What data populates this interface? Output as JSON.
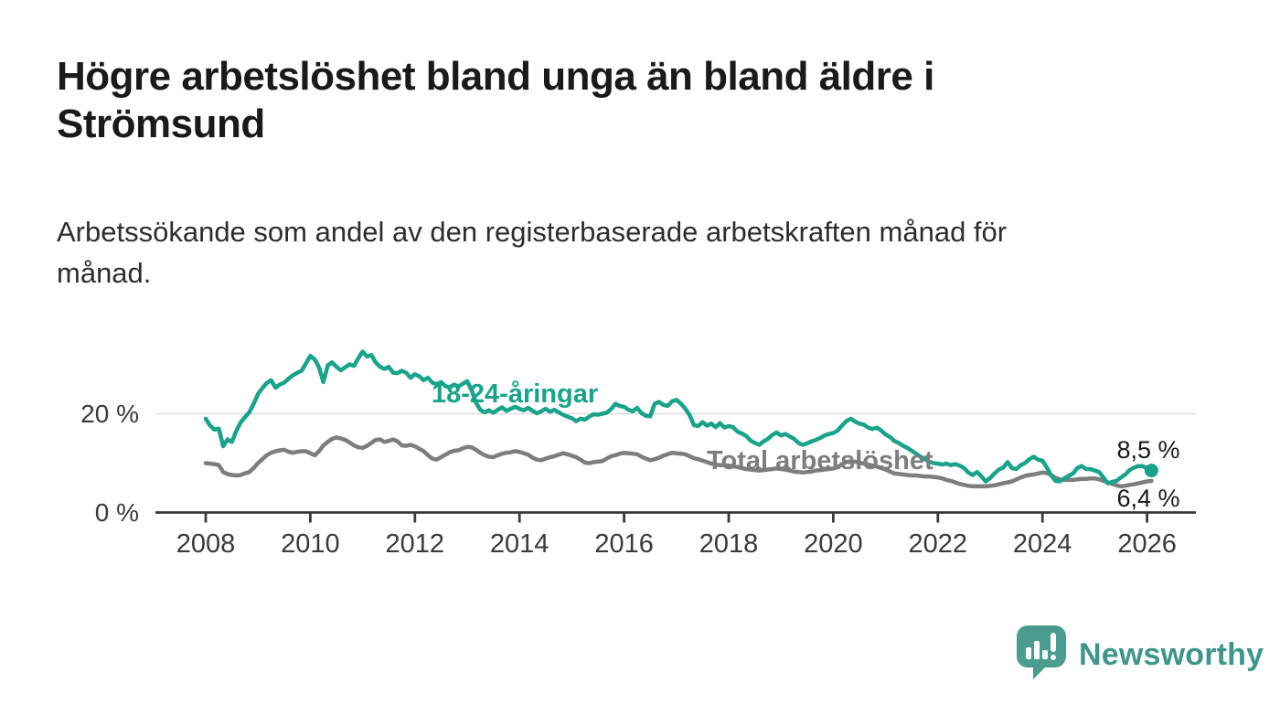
{
  "title": "Högre arbetslöshet bland unga än bland äldre i Strömsund",
  "subtitle": "Arbetssökande som andel av den registerbaserade arbetskraften månad för månad.",
  "branding": {
    "name": "Newsworthy",
    "logo_color": "#4a9c8e",
    "wordmark_color": "#3e968a"
  },
  "colors": {
    "youth_line": "#18a38a",
    "total_line": "#7d7d7d",
    "axis": "#3a3a3a",
    "gridline": "#dcdcdc",
    "end_label": "#1a1a1a"
  },
  "chart_data": {
    "type": "line",
    "title": "Högre arbetslöshet bland unga än bland äldre i Strömsund",
    "subtitle": "Arbetssökande som andel av den registerbaserade arbetskraften månad för månad.",
    "unit": "%",
    "x_start_year": 2008,
    "x_step_months": 1,
    "x_ticks": [
      "2008",
      "2010",
      "2012",
      "2014",
      "2016",
      "2018",
      "2020",
      "2022",
      "2024",
      "2026"
    ],
    "x_tick_years": [
      2008,
      2010,
      2012,
      2014,
      2016,
      2018,
      2020,
      2022,
      2024,
      2026
    ],
    "y_ticks": [
      {
        "value": 0,
        "label": "0 %"
      },
      {
        "value": 20,
        "label": "20 %"
      }
    ],
    "ylim": [
      0,
      36
    ],
    "grid": "horizontal line at 20 % only",
    "legend_position": "inline labels on lines",
    "series": [
      {
        "name": "Total arbetslöshet",
        "label_text": "Total arbetslöshet",
        "color": "#7d7d7d",
        "end_label": "6,4 %",
        "end_value": 6.4,
        "end_marker": false,
        "values": [
          10.0,
          9.9,
          9.8,
          9.6,
          8.2,
          7.8,
          7.6,
          7.5,
          7.6,
          7.9,
          8.2,
          9.0,
          10.0,
          10.8,
          11.6,
          12.1,
          12.4,
          12.6,
          12.7,
          12.3,
          12.1,
          12.3,
          12.4,
          12.4,
          12.0,
          11.6,
          12.4,
          13.6,
          14.3,
          14.9,
          15.2,
          15.0,
          14.7,
          14.2,
          13.6,
          13.2,
          13.1,
          13.5,
          14.1,
          14.7,
          14.8,
          14.3,
          14.5,
          14.8,
          14.4,
          13.6,
          13.5,
          13.7,
          13.4,
          12.9,
          12.4,
          11.6,
          10.9,
          10.7,
          11.2,
          11.7,
          12.2,
          12.5,
          12.6,
          13.0,
          13.3,
          13.2,
          12.7,
          12.1,
          11.6,
          11.3,
          11.2,
          11.6,
          11.9,
          12.1,
          12.2,
          12.4,
          12.3,
          12.0,
          11.7,
          11.1,
          10.7,
          10.6,
          10.9,
          11.2,
          11.4,
          11.7,
          12.0,
          11.8,
          11.5,
          11.2,
          10.7,
          10.1,
          10.0,
          10.2,
          10.3,
          10.4,
          10.9,
          11.4,
          11.6,
          11.9,
          12.1,
          12.0,
          11.9,
          11.8,
          11.3,
          10.9,
          10.6,
          10.8,
          11.1,
          11.5,
          11.8,
          12.1,
          12.0,
          11.9,
          11.8,
          11.4,
          11.0,
          10.8,
          10.5,
          10.2,
          9.9,
          9.7,
          9.6,
          9.6,
          9.5,
          9.4,
          9.2,
          9.0,
          8.8,
          8.7,
          8.6,
          8.5,
          8.6,
          8.7,
          8.8,
          8.9,
          8.8,
          8.7,
          8.5,
          8.3,
          8.2,
          8.1,
          8.2,
          8.3,
          8.5,
          8.6,
          8.7,
          8.8,
          8.9,
          9.2,
          9.8,
          10.2,
          10.4,
          10.3,
          10.1,
          9.9,
          9.7,
          9.5,
          9.3,
          9.0,
          8.7,
          8.3,
          7.9,
          7.8,
          7.7,
          7.6,
          7.5,
          7.5,
          7.4,
          7.3,
          7.3,
          7.2,
          7.1,
          6.9,
          6.6,
          6.4,
          6.1,
          5.8,
          5.6,
          5.4,
          5.3,
          5.3,
          5.3,
          5.3,
          5.4,
          5.5,
          5.7,
          5.9,
          6.1,
          6.3,
          6.7,
          7.1,
          7.4,
          7.6,
          7.7,
          7.9,
          8.1,
          8.0,
          7.6,
          7.0,
          6.7,
          6.6,
          6.6,
          6.6,
          6.7,
          6.8,
          6.8,
          6.9,
          6.9,
          6.7,
          6.4,
          6.1,
          5.8,
          5.5,
          5.3,
          5.4,
          5.6,
          5.7,
          5.9,
          6.1,
          6.3,
          6.4
        ]
      },
      {
        "name": "18-24-åringar",
        "label_text": "18-24-åringar",
        "color": "#18a38a",
        "end_label": "8,5 %",
        "end_value": 8.5,
        "end_marker": true,
        "values": [
          19.0,
          17.6,
          16.8,
          17.0,
          13.4,
          14.8,
          14.3,
          16.5,
          18.2,
          19.3,
          20.3,
          22.0,
          24.0,
          25.2,
          26.2,
          26.8,
          25.3,
          25.9,
          26.3,
          27.1,
          27.8,
          28.3,
          28.7,
          30.2,
          31.7,
          31.0,
          29.4,
          26.4,
          29.8,
          30.4,
          29.5,
          28.8,
          29.4,
          30.0,
          29.7,
          31.2,
          32.6,
          31.6,
          31.9,
          30.4,
          29.5,
          29.1,
          29.5,
          28.3,
          28.2,
          28.7,
          28.3,
          27.3,
          28.0,
          27.6,
          26.8,
          27.3,
          26.3,
          26.0,
          26.4,
          25.6,
          25.3,
          25.9,
          25.5,
          26.1,
          26.6,
          24.8,
          22.3,
          20.8,
          20.3,
          20.7,
          20.2,
          20.8,
          21.3,
          20.6,
          21.0,
          21.4,
          21.0,
          20.7,
          21.2,
          20.6,
          20.1,
          20.5,
          21.0,
          20.4,
          20.8,
          20.3,
          19.8,
          19.4,
          19.1,
          18.5,
          19.0,
          18.8,
          19.4,
          19.9,
          19.8,
          20.0,
          20.2,
          20.9,
          22.0,
          21.6,
          21.4,
          20.8,
          20.5,
          21.2,
          20.1,
          19.6,
          19.5,
          22.0,
          22.4,
          21.8,
          21.6,
          22.5,
          22.8,
          22.1,
          21.1,
          19.8,
          17.7,
          17.5,
          18.3,
          17.6,
          18.0,
          17.3,
          18.1,
          17.2,
          17.5,
          17.3,
          16.4,
          16.0,
          15.5,
          14.6,
          14.1,
          13.7,
          14.4,
          14.9,
          15.7,
          16.2,
          15.6,
          15.9,
          15.4,
          14.9,
          14.1,
          13.7,
          14.0,
          14.4,
          14.7,
          15.1,
          15.6,
          15.9,
          16.1,
          16.6,
          17.6,
          18.5,
          19.0,
          18.4,
          18.0,
          17.8,
          17.2,
          16.9,
          17.2,
          16.6,
          15.8,
          15.3,
          14.5,
          14.1,
          13.5,
          13.1,
          12.5,
          11.9,
          11.3,
          10.8,
          10.3,
          10.0,
          9.9,
          9.7,
          9.9,
          9.6,
          9.8,
          9.5,
          9.0,
          8.1,
          7.6,
          8.2,
          7.3,
          6.3,
          7.0,
          7.9,
          8.7,
          9.1,
          10.2,
          9.0,
          8.8,
          9.6,
          10.0,
          10.8,
          11.3,
          10.7,
          10.5,
          9.1,
          7.5,
          6.4,
          6.3,
          6.9,
          7.4,
          7.9,
          9.0,
          9.4,
          8.8,
          8.8,
          8.5,
          8.2,
          7.1,
          5.9,
          6.2,
          6.4,
          7.1,
          7.7,
          8.6,
          9.1,
          9.4,
          9.4,
          8.9,
          8.5
        ]
      }
    ]
  }
}
